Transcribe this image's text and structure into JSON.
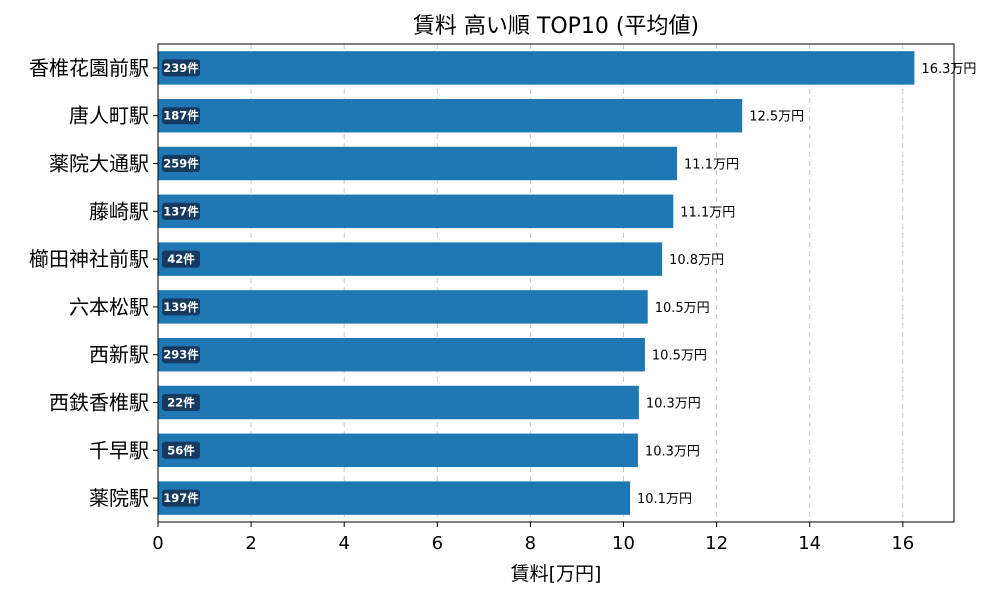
{
  "chart_data": {
    "type": "bar",
    "orientation": "horizontal",
    "title": "賃料 高い順 TOP10 (平均値)",
    "xlabel": "賃料[万円]",
    "ylabel": "",
    "xlim": [
      0,
      17.1
    ],
    "xticks": [
      0,
      2,
      4,
      6,
      8,
      10,
      12,
      14,
      16
    ],
    "grid": "x-dashed",
    "bar_color": "#1f77b4",
    "badge_color": "#163a5f",
    "categories": [
      "香椎花園前駅",
      "唐人町駅",
      "薬院大通駅",
      "藤崎駅",
      "櫛田神社前駅",
      "六本松駅",
      "西新駅",
      "西鉄香椎駅",
      "千早駅",
      "薬院駅"
    ],
    "values": [
      16.25,
      12.55,
      11.15,
      11.07,
      10.83,
      10.52,
      10.46,
      10.33,
      10.31,
      10.14
    ],
    "value_labels": [
      "16.3万円",
      "12.5万円",
      "11.1万円",
      "11.1万円",
      "10.8万円",
      "10.5万円",
      "10.5万円",
      "10.3万円",
      "10.3万円",
      "10.1万円"
    ],
    "count_labels": [
      "239件",
      "187件",
      "259件",
      "137件",
      "42件",
      "139件",
      "293件",
      "22件",
      "56件",
      "197件"
    ]
  }
}
